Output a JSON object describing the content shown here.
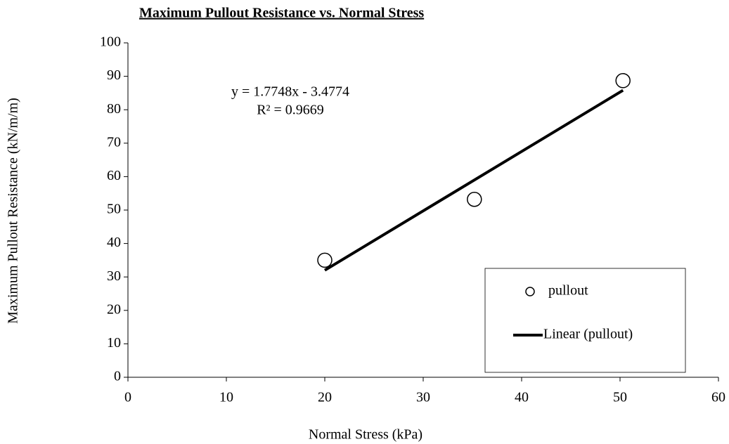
{
  "chart_data": {
    "type": "scatter",
    "title": "Maximum Pullout Resistance vs. Normal Stress",
    "x_label": "Normal Stress (kPa)",
    "y_label": "Maximum Pullout Resistance (kN/m/m)",
    "xlim": [
      0,
      60
    ],
    "xticks": [
      0,
      10,
      20,
      30,
      40,
      50,
      60
    ],
    "ylim": [
      0,
      100
    ],
    "yticks": [
      0,
      10,
      20,
      30,
      40,
      50,
      60,
      70,
      80,
      90,
      100
    ],
    "series": [
      {
        "name": "pullout",
        "type": "scatter",
        "color": "#000000",
        "x": [
          20,
          35.2,
          50.3
        ],
        "values": [
          35,
          53.2,
          88.7
        ]
      },
      {
        "name": "Linear (pullout)",
        "type": "line",
        "color": "#000000",
        "x": [
          20,
          50.3
        ],
        "values": [
          32.0,
          85.8
        ]
      }
    ],
    "annotations": [
      "y = 1.7748x - 3.4774",
      "R² = 0.9669"
    ],
    "legend": "lower right"
  }
}
